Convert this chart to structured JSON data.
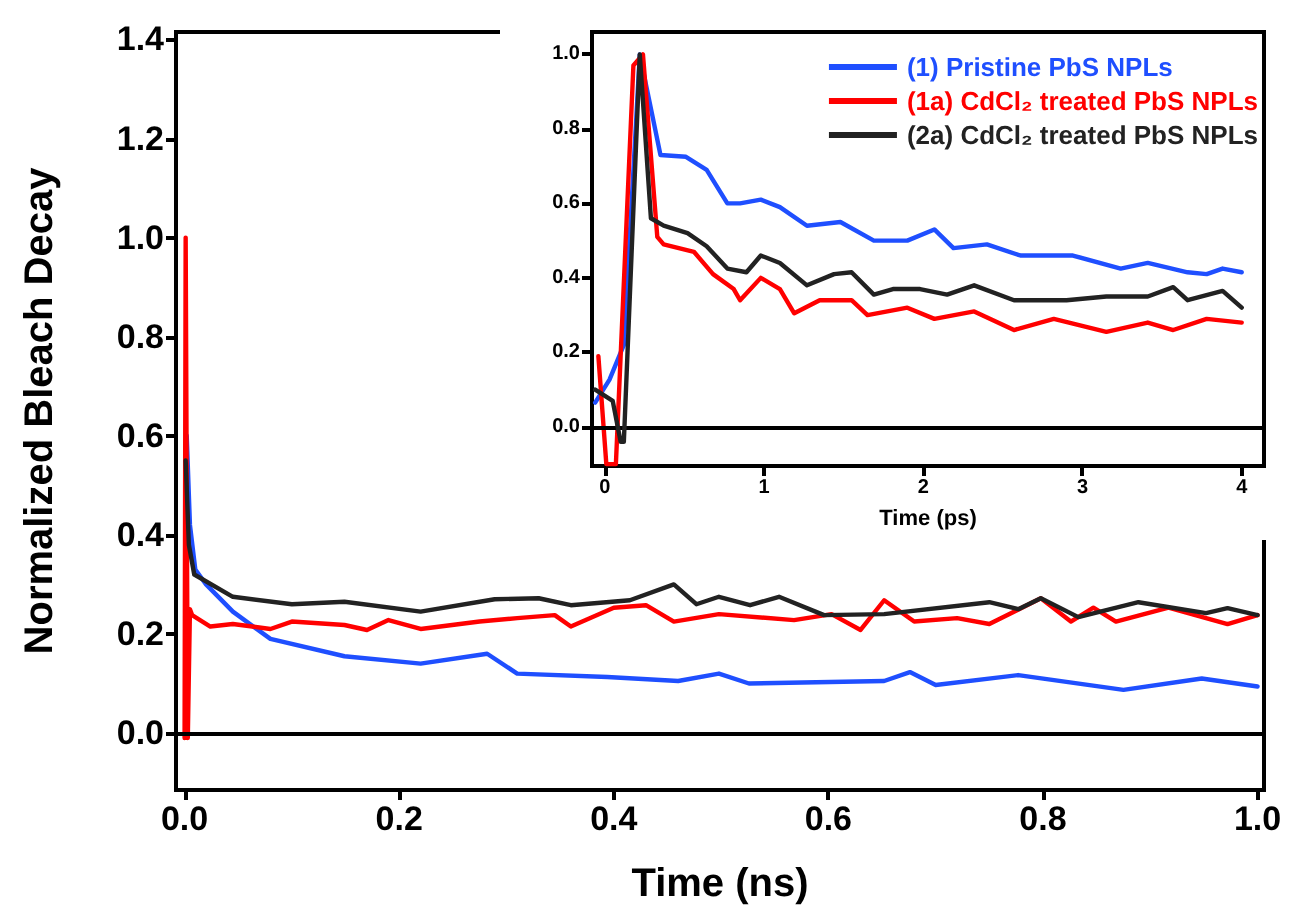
{
  "chart_data": [
    {
      "type": "line",
      "xlabel": "Time (ns)",
      "ylabel": "Normalized Bleach Decay",
      "xlim": [
        -0.008,
        1.006
      ],
      "ylim": [
        -0.115,
        1.415
      ],
      "xticks": [
        {
          "value": 0,
          "label": "0.0"
        },
        {
          "value": 0.2,
          "label": "0.2"
        },
        {
          "value": 0.4,
          "label": "0.4"
        },
        {
          "value": 0.6,
          "label": "0.6"
        },
        {
          "value": 0.8,
          "label": "0.8"
        },
        {
          "value": 1,
          "label": "1.0"
        }
      ],
      "yticks": [
        {
          "value": 0,
          "label": "0.0"
        },
        {
          "value": 0.2,
          "label": "0.2"
        },
        {
          "value": 0.4,
          "label": "0.4"
        },
        {
          "value": 0.6,
          "label": "0.6"
        },
        {
          "value": 0.8,
          "label": "0.8"
        },
        {
          "value": 1,
          "label": "1.0"
        },
        {
          "value": 1.2,
          "label": "1.2"
        },
        {
          "value": 1.4,
          "label": "1.4"
        }
      ],
      "grid": false,
      "legend": false,
      "marker": "none",
      "line_style": "solid",
      "ref_lines": [
        {
          "axis": "y",
          "value": 0,
          "color": "#000000"
        }
      ],
      "series": [
        {
          "color": "#1f4fff",
          "x": [
            0.002,
            0.005,
            0.01,
            0.02,
            0.045,
            0.08,
            0.149,
            0.22,
            0.282,
            0.31,
            0.394,
            0.46,
            0.498,
            0.526,
            0.652,
            0.676,
            0.7,
            0.777,
            0.875,
            0.948,
            1.0
          ],
          "values": [
            0.6,
            0.42,
            0.33,
            0.3,
            0.245,
            0.19,
            0.155,
            0.14,
            0.16,
            0.12,
            0.113,
            0.105,
            0.12,
            0.1,
            0.105,
            0.123,
            0.097,
            0.117,
            0.087,
            0.11,
            0.094
          ]
        },
        {
          "color": "#ff0000",
          "x": [
            0,
            0.001,
            0.003,
            0.005,
            0.007,
            0.024,
            0.045,
            0.08,
            0.1,
            0.149,
            0.17,
            0.19,
            0.22,
            0.275,
            0.31,
            0.345,
            0.36,
            0.4,
            0.43,
            0.456,
            0.498,
            0.568,
            0.603,
            0.63,
            0.652,
            0.68,
            0.72,
            0.75,
            0.798,
            0.826,
            0.847,
            0.868,
            0.917,
            0.972,
            1.0
          ],
          "values": [
            -0.01,
            1.0,
            -0.01,
            0.25,
            0.238,
            0.215,
            0.22,
            0.21,
            0.225,
            0.218,
            0.208,
            0.228,
            0.21,
            0.225,
            0.232,
            0.238,
            0.215,
            0.253,
            0.258,
            0.225,
            0.24,
            0.228,
            0.24,
            0.208,
            0.268,
            0.225,
            0.232,
            0.22,
            0.272,
            0.225,
            0.253,
            0.225,
            0.253,
            0.22,
            0.238
          ]
        },
        {
          "color": "#222222",
          "x": [
            0.001,
            0.004,
            0.009,
            0.045,
            0.1,
            0.149,
            0.22,
            0.289,
            0.33,
            0.36,
            0.415,
            0.456,
            0.477,
            0.498,
            0.527,
            0.554,
            0.596,
            0.652,
            0.75,
            0.777,
            0.798,
            0.833,
            0.889,
            0.952,
            0.972,
            1.0
          ],
          "values": [
            0.55,
            0.38,
            0.32,
            0.275,
            0.26,
            0.265,
            0.245,
            0.27,
            0.272,
            0.258,
            0.268,
            0.3,
            0.26,
            0.275,
            0.258,
            0.275,
            0.238,
            0.24,
            0.264,
            0.25,
            0.272,
            0.234,
            0.264,
            0.242,
            0.252,
            0.238
          ]
        }
      ]
    },
    {
      "type": "line",
      "xlabel": "Time (ps)",
      "xlim": [
        -0.08,
        4.14
      ],
      "ylim": [
        -0.105,
        1.06
      ],
      "xticks": [
        0,
        1,
        2,
        3,
        4
      ],
      "yticks": [
        {
          "value": 0,
          "label": "0.0"
        },
        {
          "value": 0.2,
          "label": "0.2"
        },
        {
          "value": 0.4,
          "label": "0.4"
        },
        {
          "value": 0.6,
          "label": "0.6"
        },
        {
          "value": 0.8,
          "label": "0.8"
        },
        {
          "value": 1,
          "label": "1.0"
        }
      ],
      "grid": false,
      "legend": "top right",
      "marker": "none",
      "line_style": "solid",
      "ref_lines": [
        {
          "axis": "y",
          "value": 0,
          "color": "#000000"
        }
      ],
      "series": [
        {
          "name": "(1) Pristine PbS NPLs",
          "color": "#1f4fff",
          "x": [
            -0.06,
            0.03,
            0.12,
            0.22,
            0.35,
            0.51,
            0.64,
            0.77,
            0.85,
            0.98,
            1.1,
            1.27,
            1.48,
            1.69,
            1.9,
            2.07,
            2.19,
            2.4,
            2.61,
            2.94,
            3.24,
            3.41,
            3.66,
            3.78,
            3.88,
            4.0
          ],
          "values": [
            0.065,
            0.127,
            0.22,
            1.0,
            0.73,
            0.725,
            0.69,
            0.6,
            0.6,
            0.61,
            0.59,
            0.54,
            0.55,
            0.5,
            0.5,
            0.53,
            0.48,
            0.49,
            0.46,
            0.46,
            0.425,
            0.44,
            0.415,
            0.41,
            0.425,
            0.415
          ]
        },
        {
          "name": "(1a) CdCl₂ treated PbS NPLs",
          "color": "#ff0000",
          "x": [
            -0.04,
            0.01,
            0.07,
            0.18,
            0.24,
            0.33,
            0.37,
            0.56,
            0.68,
            0.81,
            0.85,
            0.98,
            1.1,
            1.19,
            1.35,
            1.55,
            1.65,
            1.9,
            2.07,
            2.32,
            2.57,
            2.82,
            3.15,
            3.41,
            3.57,
            3.78,
            4.0
          ],
          "values": [
            0.19,
            -0.1,
            -0.1,
            0.97,
            1.0,
            0.51,
            0.49,
            0.47,
            0.41,
            0.37,
            0.34,
            0.4,
            0.37,
            0.305,
            0.34,
            0.34,
            0.3,
            0.32,
            0.29,
            0.31,
            0.26,
            0.29,
            0.255,
            0.28,
            0.26,
            0.29,
            0.28
          ]
        },
        {
          "name": "(2a) CdCl₂ treated PbS NPLs",
          "color": "#222222",
          "x": [
            -0.06,
            0.05,
            0.1,
            0.12,
            0.22,
            0.29,
            0.37,
            0.52,
            0.64,
            0.77,
            0.89,
            0.98,
            1.1,
            1.27,
            1.44,
            1.55,
            1.69,
            1.81,
            1.98,
            2.15,
            2.32,
            2.57,
            2.9,
            3.15,
            3.41,
            3.57,
            3.66,
            3.88,
            4.0
          ],
          "values": [
            0.1,
            0.07,
            -0.04,
            -0.04,
            1.0,
            0.56,
            0.54,
            0.52,
            0.485,
            0.425,
            0.415,
            0.46,
            0.44,
            0.38,
            0.41,
            0.415,
            0.355,
            0.37,
            0.37,
            0.355,
            0.38,
            0.34,
            0.34,
            0.35,
            0.35,
            0.375,
            0.34,
            0.365,
            0.32
          ]
        }
      ]
    }
  ]
}
